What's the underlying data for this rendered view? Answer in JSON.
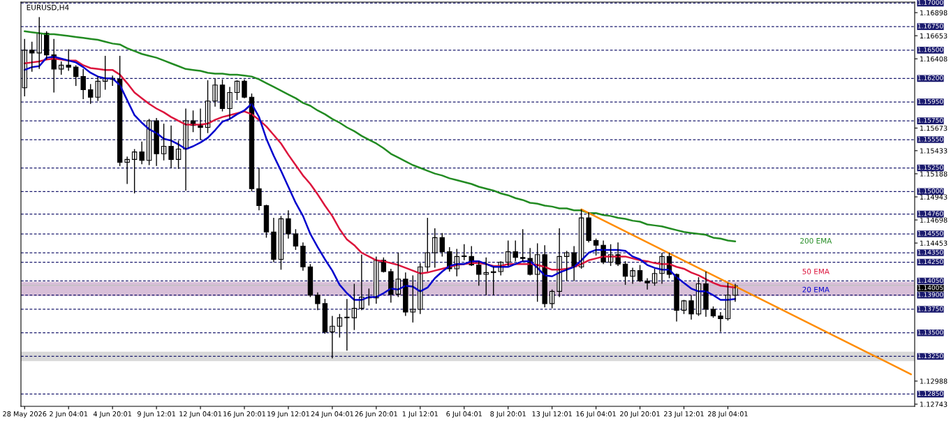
{
  "chart_data": {
    "type": "candlestick",
    "title": "EURUSD,H4",
    "categories": [
      "28 May 2026",
      null,
      null,
      null,
      null,
      null,
      "2 Jun 04:01",
      null,
      null,
      null,
      null,
      null,
      "4 Jun 20:01",
      null,
      null,
      null,
      null,
      null,
      "9 Jun 12:01",
      null,
      null,
      null,
      null,
      null,
      "12 Jun 04:01",
      null,
      null,
      null,
      null,
      null,
      "16 Jun 20:01",
      null,
      null,
      null,
      null,
      null,
      "19 Jun 12:01",
      null,
      null,
      null,
      null,
      null,
      "24 Jun 04:01",
      null,
      null,
      null,
      null,
      null,
      "26 Jun 20:01",
      null,
      null,
      null,
      null,
      null,
      "1 Jul 12:01",
      null,
      null,
      null,
      null,
      null,
      "6 Jul 04:01",
      null,
      null,
      null,
      null,
      null,
      "8 Jul 20:01",
      null,
      null,
      null,
      null,
      null,
      "13 Jul 12:01",
      null,
      null,
      null,
      null,
      null,
      "16 Jul 04:01",
      null,
      null,
      null,
      null,
      null,
      "20 Jul 20:01",
      null,
      null,
      null,
      null,
      null,
      "23 Jul 12:01",
      null,
      null,
      null,
      null,
      null,
      "28 Jul 04:01",
      null,
      null,
      null,
      null,
      null,
      null,
      null,
      null,
      null,
      null,
      null,
      null,
      null,
      null,
      null,
      null,
      null,
      null,
      null,
      null,
      null,
      null,
      null,
      null,
      null
    ],
    "ohlc": [
      [
        1.161,
        1.1662,
        1.1601,
        1.165
      ],
      [
        1.165,
        1.1659,
        1.1627,
        1.1647
      ],
      [
        1.1647,
        1.1685,
        1.163,
        1.1668
      ],
      [
        1.1668,
        1.167,
        1.164,
        1.1645
      ],
      [
        1.1645,
        1.1662,
        1.1605,
        1.163
      ],
      [
        1.163,
        1.1638,
        1.1624,
        1.1634
      ],
      [
        1.1634,
        1.1651,
        1.1628,
        1.1632
      ],
      [
        1.1632,
        1.1634,
        1.1612,
        1.1622
      ],
      [
        1.1622,
        1.163,
        1.1598,
        1.1608
      ],
      [
        1.1608,
        1.1614,
        1.1593,
        1.16
      ],
      [
        1.16,
        1.1622,
        1.1596,
        1.1617
      ],
      [
        1.1617,
        1.1644,
        1.1608,
        1.162
      ],
      [
        1.162,
        1.1623,
        1.1612,
        1.1619
      ],
      [
        1.1619,
        1.1644,
        1.1527,
        1.1531
      ],
      [
        1.1531,
        1.1537,
        1.1508,
        1.1534
      ],
      [
        1.1534,
        1.1545,
        1.1498,
        1.1542
      ],
      [
        1.1542,
        1.1553,
        1.1529,
        1.1533
      ],
      [
        1.1533,
        1.1577,
        1.1528,
        1.1575
      ],
      [
        1.1575,
        1.1578,
        1.1527,
        1.154
      ],
      [
        1.154,
        1.1572,
        1.1533,
        1.1548
      ],
      [
        1.1548,
        1.157,
        1.1525,
        1.1534
      ],
      [
        1.1534,
        1.1554,
        1.1524,
        1.1545
      ],
      [
        1.1545,
        1.1588,
        1.1501,
        1.1575
      ],
      [
        1.1575,
        1.1586,
        1.1563,
        1.157
      ],
      [
        1.157,
        1.1588,
        1.1555,
        1.1568
      ],
      [
        1.1568,
        1.1618,
        1.1562,
        1.1596
      ],
      [
        1.1596,
        1.162,
        1.159,
        1.1613
      ],
      [
        1.1613,
        1.1619,
        1.1585,
        1.1588
      ],
      [
        1.1588,
        1.1611,
        1.1577,
        1.1605
      ],
      [
        1.1605,
        1.1618,
        1.1597,
        1.1617
      ],
      [
        1.1617,
        1.1619,
        1.1599,
        1.16
      ],
      [
        1.16,
        1.1604,
        1.15,
        1.1503
      ],
      [
        1.1503,
        1.1525,
        1.148,
        1.1485
      ],
      [
        1.1485,
        1.1486,
        1.1451,
        1.1457
      ],
      [
        1.1457,
        1.1472,
        1.1425,
        1.1428
      ],
      [
        1.1428,
        1.1474,
        1.1417,
        1.1471
      ],
      [
        1.1471,
        1.148,
        1.145,
        1.1455
      ],
      [
        1.1455,
        1.146,
        1.1438,
        1.1442
      ],
      [
        1.1442,
        1.1446,
        1.1416,
        1.142
      ],
      [
        1.142,
        1.1423,
        1.1388,
        1.139
      ],
      [
        1.139,
        1.1393,
        1.1374,
        1.1381
      ],
      [
        1.1381,
        1.1386,
        1.1349,
        1.1351
      ],
      [
        1.1351,
        1.1368,
        1.1323,
        1.1357
      ],
      [
        1.1357,
        1.137,
        1.1345,
        1.1366
      ],
      [
        1.1366,
        1.1386,
        1.1331,
        1.1366
      ],
      [
        1.1366,
        1.1402,
        1.1353,
        1.1376
      ],
      [
        1.1376,
        1.1433,
        1.1374,
        1.1388
      ],
      [
        1.1388,
        1.1397,
        1.1379,
        1.1387
      ],
      [
        1.1387,
        1.1431,
        1.1381,
        1.1427
      ],
      [
        1.1427,
        1.143,
        1.1414,
        1.1415
      ],
      [
        1.1415,
        1.1418,
        1.1382,
        1.1391
      ],
      [
        1.1391,
        1.1435,
        1.1388,
        1.1407
      ],
      [
        1.1407,
        1.1414,
        1.1368,
        1.1372
      ],
      [
        1.1372,
        1.1411,
        1.1361,
        1.1375
      ],
      [
        1.1375,
        1.1424,
        1.137,
        1.142
      ],
      [
        1.142,
        1.1472,
        1.1415,
        1.1435
      ],
      [
        1.1435,
        1.1461,
        1.1419,
        1.1451
      ],
      [
        1.1451,
        1.1456,
        1.1431,
        1.1436
      ],
      [
        1.1436,
        1.1441,
        1.1415,
        1.1418
      ],
      [
        1.1418,
        1.1439,
        1.141,
        1.1431
      ],
      [
        1.1431,
        1.1444,
        1.1427,
        1.1431
      ],
      [
        1.1431,
        1.1442,
        1.1421,
        1.1422
      ],
      [
        1.1422,
        1.1426,
        1.14,
        1.1412
      ],
      [
        1.1412,
        1.143,
        1.139,
        1.1414
      ],
      [
        1.1414,
        1.142,
        1.139,
        1.1415
      ],
      [
        1.1415,
        1.1426,
        1.1411,
        1.1425
      ],
      [
        1.1425,
        1.1448,
        1.1421,
        1.1436
      ],
      [
        1.1436,
        1.1448,
        1.1426,
        1.143
      ],
      [
        1.143,
        1.146,
        1.1426,
        1.1429
      ],
      [
        1.1429,
        1.144,
        1.1411,
        1.1412
      ],
      [
        1.1412,
        1.1445,
        1.1383,
        1.1433
      ],
      [
        1.1433,
        1.1443,
        1.1377,
        1.1381
      ],
      [
        1.1381,
        1.1396,
        1.1376,
        1.1394
      ],
      [
        1.1394,
        1.1461,
        1.1388,
        1.1431
      ],
      [
        1.1431,
        1.1437,
        1.1405,
        1.1435
      ],
      [
        1.1435,
        1.1442,
        1.1405,
        1.142
      ],
      [
        1.142,
        1.1481,
        1.1418,
        1.1472
      ],
      [
        1.1472,
        1.1478,
        1.1446,
        1.1448
      ],
      [
        1.1448,
        1.145,
        1.1432,
        1.1443
      ],
      [
        1.1443,
        1.1448,
        1.1423,
        1.1425
      ],
      [
        1.1425,
        1.1444,
        1.1421,
        1.1433
      ],
      [
        1.1433,
        1.1446,
        1.1421,
        1.1423
      ],
      [
        1.1423,
        1.1426,
        1.1401,
        1.141
      ],
      [
        1.141,
        1.1419,
        1.1402,
        1.1416
      ],
      [
        1.1416,
        1.1422,
        1.1404,
        1.1405
      ],
      [
        1.1405,
        1.1408,
        1.1396,
        1.1403
      ],
      [
        1.1403,
        1.1418,
        1.14,
        1.1413
      ],
      [
        1.1413,
        1.1435,
        1.1402,
        1.1431
      ],
      [
        1.1431,
        1.1435,
        1.1408,
        1.1412
      ],
      [
        1.1412,
        1.1413,
        1.1362,
        1.1374
      ],
      [
        1.1374,
        1.1385,
        1.137,
        1.1384
      ],
      [
        1.1384,
        1.139,
        1.1364,
        1.137
      ],
      [
        1.137,
        1.1409,
        1.1368,
        1.1402
      ],
      [
        1.1402,
        1.1415,
        1.1367,
        1.1375
      ],
      [
        1.1375,
        1.1378,
        1.1366,
        1.1368
      ],
      [
        1.1368,
        1.1372,
        1.1351,
        1.1365
      ],
      [
        1.1365,
        1.1403,
        1.1363,
        1.139
      ],
      [
        1.139,
        1.1402,
        1.1383,
        1.14
      ],
      null,
      null,
      null,
      null,
      null,
      null,
      null,
      null,
      null,
      null,
      null,
      null,
      null,
      null,
      null,
      null,
      null,
      null,
      null,
      null,
      null,
      null,
      null,
      null
    ],
    "bands": [
      {
        "axis": "y",
        "from": 1.132,
        "to": 1.133,
        "color": "#d9d9d9"
      },
      {
        "axis": "y",
        "from": 1.1389,
        "to": 1.1404,
        "color": "#d8bfd8"
      }
    ],
    "series": [
      {
        "type": "line",
        "name": "200 EMA",
        "color": "#228b22",
        "values": [
          1.167,
          1.1669,
          1.1668,
          1.1667,
          1.1667,
          1.1666,
          1.1665,
          1.1664,
          1.1663,
          1.1662,
          1.1661,
          1.1659,
          1.1657,
          1.1656,
          1.1652,
          1.1649,
          1.1646,
          1.1644,
          1.1642,
          1.1639,
          1.1636,
          1.1633,
          1.163,
          1.1629,
          1.1628,
          1.1626,
          1.1625,
          1.1625,
          1.1624,
          1.1624,
          1.1623,
          1.1622,
          1.1619,
          1.1615,
          1.1611,
          1.1607,
          1.1603,
          1.1599,
          1.1594,
          1.1591,
          1.1586,
          1.1582,
          1.1577,
          1.1573,
          1.1568,
          1.1564,
          1.1559,
          1.1555,
          1.1551,
          1.1546,
          1.154,
          1.1536,
          1.1532,
          1.1528,
          1.1525,
          1.1522,
          1.1519,
          1.1517,
          1.1514,
          1.1512,
          1.151,
          1.1508,
          1.1505,
          1.1503,
          1.1501,
          1.1498,
          1.1496,
          1.1493,
          1.1491,
          1.1488,
          1.1487,
          1.1485,
          1.1484,
          1.1482,
          1.1482,
          1.148,
          1.148,
          1.1477,
          1.1477,
          1.1475,
          1.1474,
          1.1472,
          1.1471,
          1.1469,
          1.1468,
          1.1465,
          1.1464,
          1.1463,
          1.1461,
          1.1459,
          1.1457,
          1.1456,
          1.1455,
          1.1454,
          1.1451,
          1.145,
          1.1448,
          1.1447,
          null,
          null,
          null,
          null,
          null,
          null,
          null,
          null,
          null,
          null,
          null,
          null,
          null,
          null,
          null,
          null,
          null,
          null,
          null,
          null,
          null,
          null,
          null,
          null
        ]
      },
      {
        "type": "line",
        "name": "50 EMA",
        "color": "#dc143c",
        "values": [
          1.1636,
          1.1637,
          1.1638,
          1.164,
          1.1641,
          1.164,
          1.1639,
          1.1639,
          1.1634,
          1.1631,
          1.163,
          1.1629,
          1.1629,
          1.1624,
          1.1615,
          1.1605,
          1.1599,
          1.1593,
          1.1588,
          1.1584,
          1.1579,
          1.1575,
          1.1571,
          1.1571,
          1.1571,
          1.1572,
          1.1576,
          1.1579,
          1.1581,
          1.1583,
          1.1585,
          1.1582,
          1.1576,
          1.1569,
          1.156,
          1.1551,
          1.1539,
          1.1528,
          1.1517,
          1.1508,
          1.1497,
          1.1485,
          1.1474,
          1.146,
          1.1449,
          1.1443,
          1.1435,
          1.1431,
          1.1427,
          1.1426,
          1.1424,
          1.1422,
          1.1419,
          1.1416,
          1.1413,
          1.1414,
          1.1416,
          1.1418,
          1.142,
          1.1422,
          1.1423,
          1.1424,
          1.1424,
          1.1423,
          1.1421,
          1.1421,
          1.1423,
          1.1423,
          1.1423,
          1.1423,
          1.1422,
          1.142,
          1.1417,
          1.1417,
          1.1418,
          1.142,
          1.1423,
          1.1427,
          1.1429,
          1.1431,
          1.1431,
          1.1431,
          1.1431,
          1.1429,
          1.1427,
          1.1426,
          1.1424,
          1.1423,
          1.1423,
          1.142,
          1.1418,
          1.1414,
          1.1411,
          1.1407,
          1.1403,
          1.14,
          1.1399,
          1.1398,
          null,
          null,
          null,
          null,
          null,
          null,
          null,
          null,
          null,
          null,
          null,
          null,
          null,
          null,
          null,
          null,
          null,
          null,
          null,
          null,
          null,
          null,
          null,
          null
        ]
      },
      {
        "type": "line",
        "name": "20 EMA",
        "color": "#0000cd",
        "values": [
          1.1629,
          1.1632,
          1.1633,
          1.1642,
          1.1643,
          1.1641,
          1.1639,
          1.1637,
          1.1632,
          1.1626,
          1.1622,
          1.162,
          1.162,
          1.1613,
          1.1597,
          1.1581,
          1.1573,
          1.1566,
          1.1562,
          1.1556,
          1.1554,
          1.155,
          1.1545,
          1.1548,
          1.1552,
          1.1557,
          1.1565,
          1.1574,
          1.1577,
          1.1582,
          1.1586,
          1.1593,
          1.1579,
          1.1556,
          1.1538,
          1.1522,
          1.1505,
          1.1488,
          1.1474,
          1.1455,
          1.1441,
          1.1428,
          1.1416,
          1.1401,
          1.1392,
          1.1385,
          1.1385,
          1.1388,
          1.1388,
          1.1392,
          1.1397,
          1.1396,
          1.14,
          1.1399,
          1.1394,
          1.1398,
          1.1408,
          1.1415,
          1.1421,
          1.1423,
          1.1423,
          1.1426,
          1.1426,
          1.1423,
          1.142,
          1.142,
          1.142,
          1.1423,
          1.1426,
          1.1426,
          1.1419,
          1.1411,
          1.141,
          1.1414,
          1.1417,
          1.142,
          1.1427,
          1.1435,
          1.1438,
          1.1438,
          1.1438,
          1.1438,
          1.1437,
          1.1431,
          1.1428,
          1.1422,
          1.1419,
          1.1417,
          1.1417,
          1.1409,
          1.1403,
          1.1397,
          1.1394,
          1.1394,
          1.139,
          1.1385,
          1.1385,
          1.1386,
          null,
          null,
          null,
          null,
          null,
          null,
          null,
          null,
          null,
          null,
          null,
          null,
          null,
          null,
          null,
          null,
          null,
          null,
          null,
          null,
          null,
          null,
          null,
          null
        ]
      },
      {
        "type": "line",
        "color": "#ff8c00",
        "values": [
          null,
          null,
          null,
          null,
          null,
          null,
          null,
          null,
          null,
          null,
          null,
          null,
          null,
          null,
          null,
          null,
          null,
          null,
          null,
          null,
          null,
          null,
          null,
          null,
          null,
          null,
          null,
          null,
          null,
          null,
          null,
          null,
          null,
          null,
          null,
          null,
          null,
          null,
          null,
          null,
          null,
          null,
          null,
          null,
          null,
          null,
          null,
          null,
          null,
          null,
          null,
          null,
          null,
          null,
          null,
          null,
          null,
          null,
          null,
          null,
          null,
          null,
          null,
          null,
          null,
          null,
          null,
          null,
          null,
          null,
          null,
          null,
          null,
          null,
          null,
          null,
          1.1481,
          null,
          null,
          null,
          null,
          null,
          null,
          null,
          null,
          null,
          null,
          null,
          null,
          null,
          null,
          null,
          null,
          null,
          null,
          null,
          null,
          null,
          null,
          null,
          null,
          null,
          null,
          null,
          null,
          null,
          null,
          null,
          null,
          null,
          null,
          null,
          null,
          null,
          null,
          null,
          null,
          null,
          null,
          null,
          null,
          1.1306
        ]
      }
    ],
    "ylim": [
      1.1272,
      1.1701
    ],
    "yticks": [
      1.16898,
      1.16653,
      1.16408,
      1.15673,
      1.15433,
      1.15188,
      1.14943,
      1.14698,
      1.14453,
      1.12988,
      1.12743
    ],
    "ref_lines": [
      {
        "axis": "y",
        "value": 1.17,
        "label": "1.17000",
        "color": "#1a1a6e",
        "line_style": "dashed"
      },
      {
        "axis": "y",
        "value": 1.1675,
        "label": "1.16750",
        "color": "#1a1a6e",
        "line_style": "dashed"
      },
      {
        "axis": "y",
        "value": 1.165,
        "label": "1.16500",
        "color": "#1a1a6e",
        "line_style": "dashed"
      },
      {
        "axis": "y",
        "value": 1.162,
        "label": "1.16200",
        "color": "#1a1a6e",
        "line_style": "dashed"
      },
      {
        "axis": "y",
        "value": 1.1595,
        "label": "1.15950",
        "color": "#1a1a6e",
        "line_style": "dashed"
      },
      {
        "axis": "y",
        "value": 1.1575,
        "label": "1.15750",
        "color": "#1a1a6e",
        "line_style": "dashed"
      },
      {
        "axis": "y",
        "value": 1.1555,
        "label": "1.15550",
        "color": "#1a1a6e",
        "line_style": "dashed"
      },
      {
        "axis": "y",
        "value": 1.1525,
        "label": "1.15250",
        "color": "#1a1a6e",
        "line_style": "dashed"
      },
      {
        "axis": "y",
        "value": 1.15,
        "label": "1.15000",
        "color": "#1a1a6e",
        "line_style": "dashed"
      },
      {
        "axis": "y",
        "value": 1.1476,
        "label": "1.14760",
        "color": "#1a1a6e",
        "line_style": "dashed"
      },
      {
        "axis": "y",
        "value": 1.1455,
        "label": "1.14550",
        "color": "#1a1a6e",
        "line_style": "dashed"
      },
      {
        "axis": "y",
        "value": 1.1435,
        "label": "1.14350",
        "color": "#1a1a6e",
        "line_style": "dashed"
      },
      {
        "axis": "y",
        "value": 1.1425,
        "label": "1.14250",
        "color": "#1a1a6e",
        "line_style": "dashed"
      },
      {
        "axis": "y",
        "value": 1.1405,
        "label": "1.14050",
        "color": "#1a1a6e",
        "line_style": "dashed"
      },
      {
        "axis": "y",
        "value": 1.14005,
        "label": "1.14005",
        "color": "#c0c0c0",
        "line_style": "solid"
      },
      {
        "axis": "y",
        "value": 1.139,
        "label": "1.13900",
        "color": "#1a1a6e",
        "line_style": "dashed"
      },
      {
        "axis": "y",
        "value": 1.1375,
        "label": "1.13750",
        "color": "#1a1a6e",
        "line_style": "dashed"
      },
      {
        "axis": "y",
        "value": 1.135,
        "label": "1.13500",
        "color": "#1a1a6e",
        "line_style": "dashed"
      },
      {
        "axis": "y",
        "value": 1.1325,
        "label": "1.13250",
        "color": "#1a1a6e",
        "line_style": "dashed"
      },
      {
        "axis": "y",
        "value": 1.1285,
        "label": "1.12850",
        "color": "#1a1a6e",
        "line_style": "dashed"
      }
    ]
  }
}
